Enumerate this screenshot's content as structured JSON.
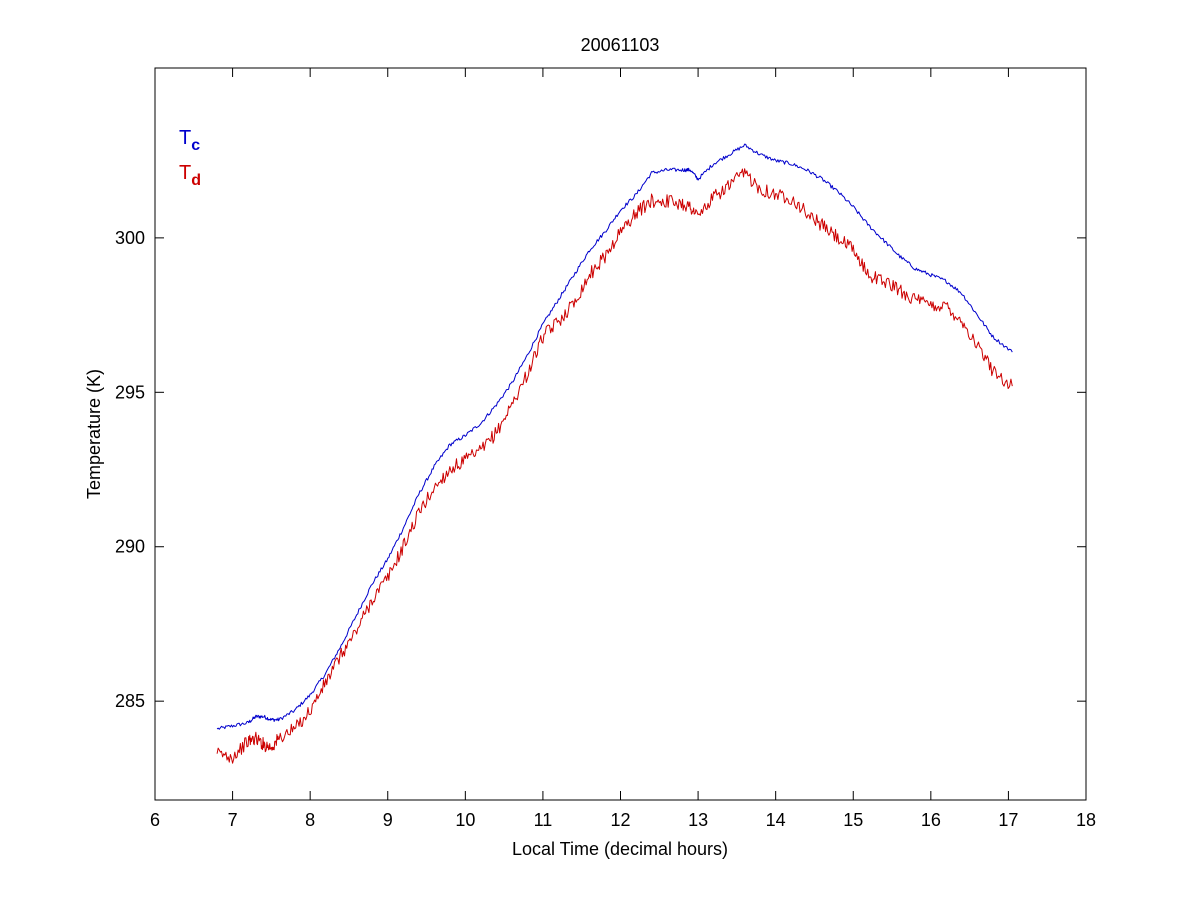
{
  "chart_data": {
    "type": "line",
    "title": "20061103",
    "xlabel": "Local Time (decimal hours)",
    "ylabel": "Temperature (K)",
    "xlim": [
      6,
      18
    ],
    "ylim": [
      281.8,
      305.5
    ],
    "xticks": [
      6,
      7,
      8,
      9,
      10,
      11,
      12,
      13,
      14,
      15,
      16,
      17,
      18
    ],
    "yticks": [
      285,
      290,
      295,
      300
    ],
    "grid": false,
    "legend_position": "top-left",
    "series": [
      {
        "name": "T",
        "subscript": "c",
        "color": "#0000cc",
        "noise": 0.06,
        "x": [
          6.8,
          7.0,
          7.2,
          7.3,
          7.4,
          7.5,
          7.6,
          7.8,
          8.0,
          8.2,
          8.4,
          8.6,
          8.8,
          9.0,
          9.2,
          9.4,
          9.6,
          9.8,
          10.0,
          10.2,
          10.4,
          10.6,
          10.8,
          11.0,
          11.2,
          11.4,
          11.6,
          11.8,
          12.0,
          12.2,
          12.4,
          12.6,
          12.8,
          12.9,
          13.0,
          13.2,
          13.4,
          13.6,
          13.8,
          14.0,
          14.2,
          14.4,
          14.6,
          14.8,
          15.0,
          15.2,
          15.4,
          15.6,
          15.8,
          16.0,
          16.2,
          16.4,
          16.6,
          16.8,
          17.05
        ],
        "y": [
          284.1,
          284.2,
          284.3,
          284.5,
          284.5,
          284.4,
          284.4,
          284.7,
          285.2,
          285.9,
          286.8,
          287.8,
          288.8,
          289.6,
          290.6,
          291.7,
          292.6,
          293.3,
          293.6,
          294.0,
          294.6,
          295.3,
          296.2,
          297.2,
          298.0,
          298.8,
          299.6,
          300.2,
          300.9,
          301.4,
          302.1,
          302.2,
          302.2,
          302.2,
          301.9,
          302.4,
          302.7,
          303.0,
          302.7,
          302.5,
          302.4,
          302.2,
          301.9,
          301.5,
          301.0,
          300.4,
          299.9,
          299.4,
          299.0,
          298.8,
          298.6,
          298.2,
          297.5,
          296.8,
          296.3
        ]
      },
      {
        "name": "T",
        "subscript": "d",
        "color": "#cc0000",
        "noise": 0.22,
        "x": [
          6.8,
          7.0,
          7.2,
          7.3,
          7.4,
          7.5,
          7.6,
          7.8,
          8.0,
          8.2,
          8.4,
          8.6,
          8.8,
          9.0,
          9.2,
          9.4,
          9.6,
          9.8,
          10.0,
          10.2,
          10.4,
          10.6,
          10.8,
          11.0,
          11.2,
          11.4,
          11.6,
          11.8,
          12.0,
          12.2,
          12.4,
          12.6,
          12.8,
          12.9,
          13.0,
          13.2,
          13.4,
          13.6,
          13.8,
          14.0,
          14.2,
          14.4,
          14.6,
          14.8,
          15.0,
          15.2,
          15.4,
          15.6,
          15.8,
          16.0,
          16.2,
          16.4,
          16.6,
          16.8,
          17.05
        ],
        "y": [
          283.3,
          283.2,
          283.7,
          283.8,
          283.6,
          283.5,
          283.8,
          284.1,
          284.7,
          285.6,
          286.5,
          287.3,
          288.3,
          289.0,
          290.0,
          291.1,
          291.9,
          292.5,
          292.8,
          293.1,
          293.7,
          294.6,
          295.6,
          296.8,
          297.3,
          297.9,
          298.8,
          299.4,
          300.2,
          300.8,
          301.2,
          301.2,
          301.1,
          301.0,
          300.7,
          301.3,
          301.7,
          302.1,
          301.6,
          301.4,
          301.3,
          300.8,
          300.4,
          300.0,
          299.6,
          298.8,
          298.6,
          298.3,
          298.0,
          297.8,
          297.8,
          297.3,
          296.5,
          295.7,
          295.2
        ]
      }
    ]
  }
}
